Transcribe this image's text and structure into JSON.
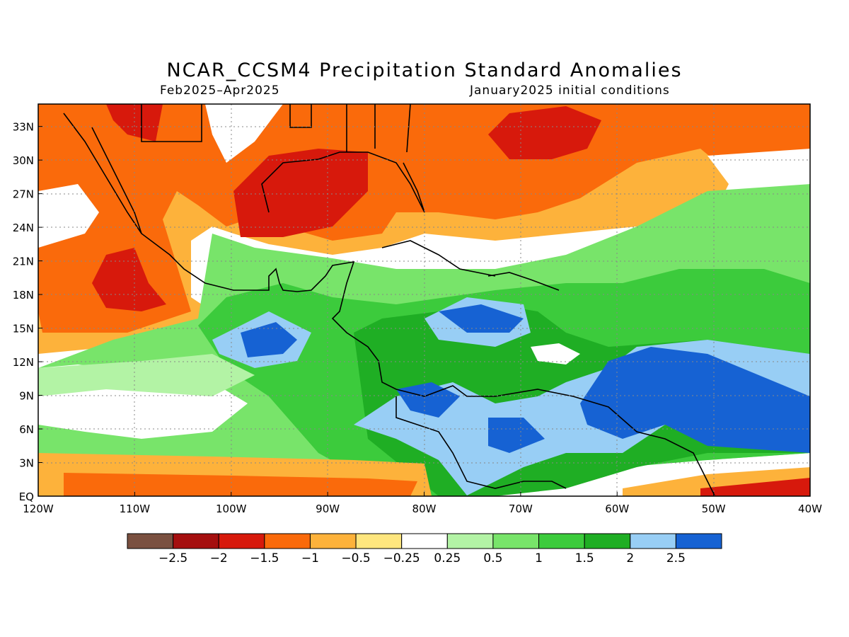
{
  "header": {
    "title": "NCAR_CCSM4 Precipitation Standard Anomalies",
    "period": "Feb2025–Apr2025",
    "init": "January2025 initial conditions"
  },
  "map": {
    "lon_range": [
      -120,
      -40
    ],
    "lat_range": [
      0,
      35
    ],
    "lon_labels": [
      "120W",
      "110W",
      "100W",
      "90W",
      "80W",
      "70W",
      "60W",
      "50W",
      "40W"
    ],
    "lat_labels": [
      "EQ",
      "3N",
      "6N",
      "9N",
      "12N",
      "15N",
      "18N",
      "21N",
      "24N",
      "27N",
      "30N",
      "33N"
    ],
    "grid": "dotted"
  },
  "legend": {
    "colors": [
      "#7a5040",
      "#a50f0f",
      "#d7190c",
      "#fa6a0b",
      "#fdb23b",
      "#fee67e",
      "#ffffff",
      "#b3f3a5",
      "#78e46a",
      "#3ccb3c",
      "#1fae24",
      "#98cef5",
      "#1662d3"
    ],
    "labels": [
      "−2.5",
      "−2",
      "−1.5",
      "−1",
      "−0.5",
      "−0.25",
      "0.25",
      "0.5",
      "1",
      "1.5",
      "2",
      "2.5"
    ]
  }
}
